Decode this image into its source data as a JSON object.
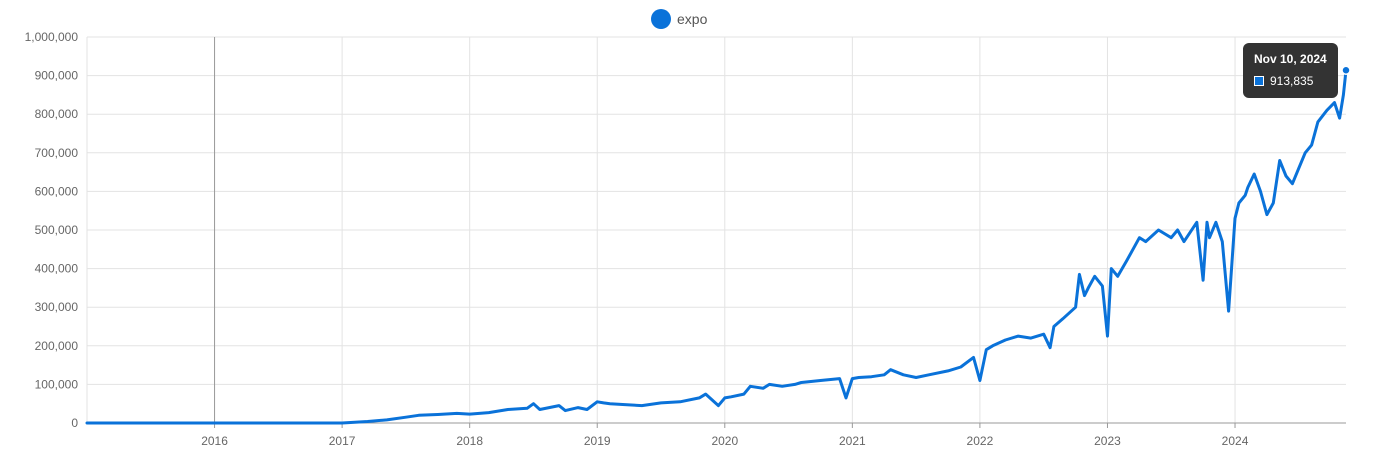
{
  "colors": {
    "series": "#0a72d9",
    "grid": "#e3e3e3",
    "tooltip_bg": "#333333"
  },
  "legend": {
    "label": "expo",
    "position": "top"
  },
  "tooltip": {
    "date": "Nov 10, 2024",
    "value": "913,835"
  },
  "chart_data": {
    "type": "line",
    "title": "",
    "xlabel": "",
    "ylabel": "",
    "grid": true,
    "ylim": [
      0,
      1000000
    ],
    "xlim": [
      2015.0,
      2024.87
    ],
    "x_ticks": [
      2016,
      2017,
      2018,
      2019,
      2020,
      2021,
      2022,
      2023,
      2024
    ],
    "x_tick_labels": [
      "2016",
      "2017",
      "2018",
      "2019",
      "2020",
      "2021",
      "2022",
      "2023",
      "2024"
    ],
    "y_ticks": [
      0,
      100000,
      200000,
      300000,
      400000,
      500000,
      600000,
      700000,
      800000,
      900000,
      1000000
    ],
    "y_tick_labels": [
      "0",
      "100,000",
      "200,000",
      "300,000",
      "400,000",
      "500,000",
      "600,000",
      "700,000",
      "800,000",
      "900,000",
      "1,000,000"
    ],
    "series": [
      {
        "name": "expo",
        "x": [
          2015.0,
          2017.0,
          2017.2,
          2017.35,
          2017.5,
          2017.6,
          2017.75,
          2017.9,
          2018.0,
          2018.15,
          2018.3,
          2018.45,
          2018.5,
          2018.55,
          2018.7,
          2018.75,
          2018.85,
          2018.92,
          2019.0,
          2019.05,
          2019.1,
          2019.2,
          2019.35,
          2019.5,
          2019.65,
          2019.8,
          2019.85,
          2019.95,
          2020.0,
          2020.05,
          2020.15,
          2020.2,
          2020.3,
          2020.35,
          2020.45,
          2020.55,
          2020.6,
          2020.75,
          2020.9,
          2020.95,
          2021.0,
          2021.05,
          2021.15,
          2021.25,
          2021.3,
          2021.4,
          2021.5,
          2021.6,
          2021.75,
          2021.85,
          2021.95,
          2022.0,
          2022.05,
          2022.1,
          2022.2,
          2022.3,
          2022.4,
          2022.5,
          2022.55,
          2022.58,
          2022.65,
          2022.75,
          2022.78,
          2022.82,
          2022.85,
          2022.9,
          2022.96,
          2023.0,
          2023.03,
          2023.08,
          2023.15,
          2023.2,
          2023.25,
          2023.3,
          2023.4,
          2023.45,
          2023.5,
          2023.55,
          2023.6,
          2023.7,
          2023.75,
          2023.78,
          2023.8,
          2023.85,
          2023.9,
          2023.95,
          2024.0,
          2024.03,
          2024.08,
          2024.1,
          2024.15,
          2024.2,
          2024.25,
          2024.3,
          2024.35,
          2024.4,
          2024.45,
          2024.5,
          2024.55,
          2024.6,
          2024.65,
          2024.72,
          2024.78,
          2024.82,
          2024.85,
          2024.87
        ],
        "values": [
          0,
          0,
          4000,
          8000,
          15000,
          20000,
          22000,
          25000,
          23000,
          27000,
          35000,
          38000,
          50000,
          35000,
          45000,
          32000,
          40000,
          35000,
          55000,
          52000,
          50000,
          48000,
          45000,
          52000,
          55000,
          65000,
          75000,
          45000,
          65000,
          68000,
          75000,
          95000,
          90000,
          100000,
          95000,
          100000,
          105000,
          110000,
          115000,
          65000,
          115000,
          118000,
          120000,
          125000,
          138000,
          125000,
          118000,
          125000,
          135000,
          145000,
          170000,
          110000,
          190000,
          200000,
          215000,
          225000,
          220000,
          230000,
          195000,
          250000,
          270000,
          300000,
          385000,
          330000,
          350000,
          380000,
          355000,
          225000,
          400000,
          380000,
          420000,
          450000,
          480000,
          470000,
          500000,
          490000,
          480000,
          500000,
          470000,
          520000,
          370000,
          520000,
          480000,
          520000,
          470000,
          290000,
          530000,
          570000,
          590000,
          610000,
          645000,
          600000,
          540000,
          570000,
          680000,
          640000,
          620000,
          660000,
          700000,
          720000,
          780000,
          810000,
          830000,
          790000,
          850000,
          913835
        ]
      }
    ]
  }
}
